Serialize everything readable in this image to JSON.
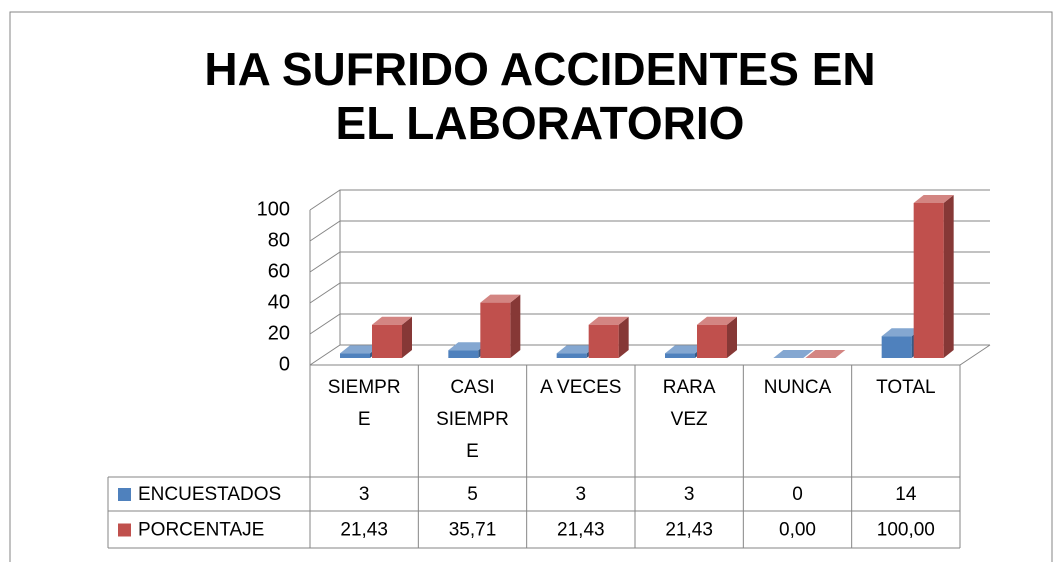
{
  "chart_data": {
    "type": "bar3d",
    "title": "HA SUFRIDO ACCIDENTES EN EL LABORATORIO",
    "categories": [
      "SIEMPRE",
      "CASI SIEMPRE",
      "A VECES",
      "RARA VEZ",
      "NUNCA",
      "TOTAL"
    ],
    "series": [
      {
        "name": "ENCUESTADOS",
        "color": "#4f81bd",
        "values": [
          3,
          5,
          3,
          3,
          0,
          14
        ]
      },
      {
        "name": "PORCENTAJE",
        "color": "#c0504d",
        "values": [
          21.43,
          35.71,
          21.43,
          21.43,
          0,
          100
        ],
        "value_labels": [
          "21,43",
          "35,71",
          "21,43",
          "21,43",
          "0,00",
          "100,00"
        ]
      }
    ],
    "ylim": [
      0,
      100
    ],
    "yticks": [
      0,
      20,
      40,
      60,
      80,
      100
    ],
    "grid": true,
    "data_table": true
  }
}
